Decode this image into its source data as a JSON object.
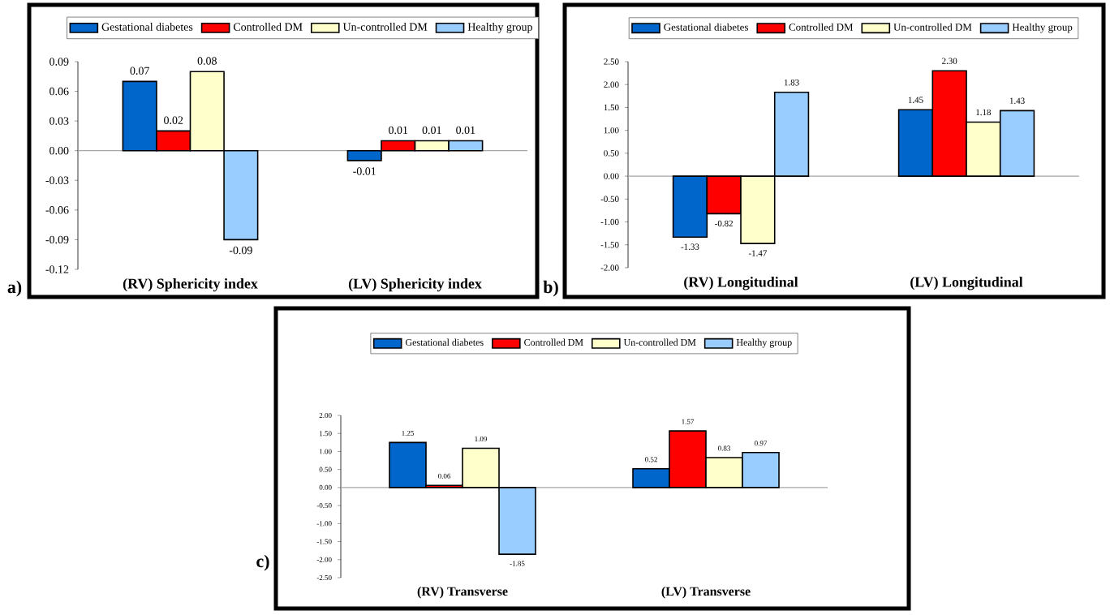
{
  "chart_data": [
    {
      "type": "bar",
      "categories": [
        "(RV) Sphericity index",
        "(LV) Sphericity index"
      ],
      "legend": "top",
      "annotations": [
        "a)"
      ],
      "ylim": [
        -0.12,
        0.09
      ],
      "yticks": [
        {
          "value": -0.12,
          "label": "-0.12"
        },
        {
          "value": -0.09,
          "label": "-0.09"
        },
        {
          "value": -0.06,
          "label": "-0.06"
        },
        {
          "value": -0.03,
          "label": "-0.03"
        },
        {
          "value": 0,
          "label": "0.00"
        },
        {
          "value": 0.03,
          "label": "0.03"
        },
        {
          "value": 0.06,
          "label": "0.06"
        },
        {
          "value": 0.09,
          "label": "0.09"
        }
      ],
      "series": [
        {
          "name": "Gestational diabetes",
          "color": "#0066cc",
          "values": [
            0.07,
            -0.01
          ],
          "value_labels": [
            "0.07",
            "-0.01"
          ]
        },
        {
          "name": "Controlled DM",
          "color": "#ff0000",
          "values": [
            0.02,
            0.01
          ],
          "value_labels": [
            "0.02",
            "0.01"
          ]
        },
        {
          "name": "Un-controlled DM",
          "color": "#ffffcc",
          "values": [
            0.08,
            0.01
          ],
          "value_labels": [
            "0.08",
            "0.01"
          ]
        },
        {
          "name": "Healthy group",
          "color": "#99ccff",
          "values": [
            -0.09,
            0.01
          ],
          "value_labels": [
            "-0.09",
            "0.01"
          ]
        }
      ]
    },
    {
      "type": "bar",
      "categories": [
        "(RV) Longitudinal",
        "(LV) Longitudinal"
      ],
      "legend": "top",
      "annotations": [
        "b)"
      ],
      "ylim": [
        -2,
        2.5
      ],
      "yticks": [
        {
          "value": -2,
          "label": "-2.00"
        },
        {
          "value": -1.5,
          "label": "-1.50"
        },
        {
          "value": -1,
          "label": "-1.00"
        },
        {
          "value": -0.5,
          "label": "-0.50"
        },
        {
          "value": 0,
          "label": "0.00"
        },
        {
          "value": 0.5,
          "label": "0.50"
        },
        {
          "value": 1,
          "label": "1.00"
        },
        {
          "value": 1.5,
          "label": "1.50"
        },
        {
          "value": 2,
          "label": "2.00"
        },
        {
          "value": 2.5,
          "label": "2.50"
        }
      ],
      "series": [
        {
          "name": "Gestational diabetes",
          "color": "#0066cc",
          "values": [
            -1.33,
            1.45
          ],
          "value_labels": [
            "-1.33",
            "1.45"
          ]
        },
        {
          "name": "Controlled DM",
          "color": "#ff0000",
          "values": [
            -0.82,
            2.3
          ],
          "value_labels": [
            "-0.82",
            "2.30"
          ]
        },
        {
          "name": "Un-controlled DM",
          "color": "#ffffcc",
          "values": [
            -1.47,
            1.18
          ],
          "value_labels": [
            "-1.47",
            "1.18"
          ]
        },
        {
          "name": "Healthy group",
          "color": "#99ccff",
          "values": [
            1.83,
            1.43
          ],
          "value_labels": [
            "1.83",
            "1.43"
          ]
        }
      ]
    },
    {
      "type": "bar",
      "categories": [
        "(RV) Transverse",
        "(LV) Transverse"
      ],
      "legend": "top",
      "annotations": [
        "c)"
      ],
      "ylim": [
        -2.5,
        2
      ],
      "yticks": [
        {
          "value": -2.5,
          "label": "-2.50"
        },
        {
          "value": -2,
          "label": "-2.00"
        },
        {
          "value": -1.5,
          "label": "-1.50"
        },
        {
          "value": -1,
          "label": "-1.00"
        },
        {
          "value": -0.5,
          "label": "-0.50"
        },
        {
          "value": 0,
          "label": "0.00"
        },
        {
          "value": 0.5,
          "label": "0.50"
        },
        {
          "value": 1,
          "label": "1.00"
        },
        {
          "value": 1.5,
          "label": "1.50"
        },
        {
          "value": 2,
          "label": "2.00"
        }
      ],
      "series": [
        {
          "name": "Gestational diabetes",
          "color": "#0066cc",
          "values": [
            1.25,
            0.52
          ],
          "value_labels": [
            "1.25",
            "0.52"
          ]
        },
        {
          "name": "Controlled DM",
          "color": "#ff0000",
          "values": [
            0.06,
            1.57
          ],
          "value_labels": [
            "0.06",
            "1.57"
          ]
        },
        {
          "name": "Un-controlled DM",
          "color": "#ffffcc",
          "values": [
            1.09,
            0.83
          ],
          "value_labels": [
            "1.09",
            "0.83"
          ]
        },
        {
          "name": "Healthy group",
          "color": "#99ccff",
          "values": [
            -1.85,
            0.97
          ],
          "value_labels": [
            "-1.85",
            "0.97"
          ]
        }
      ]
    }
  ]
}
